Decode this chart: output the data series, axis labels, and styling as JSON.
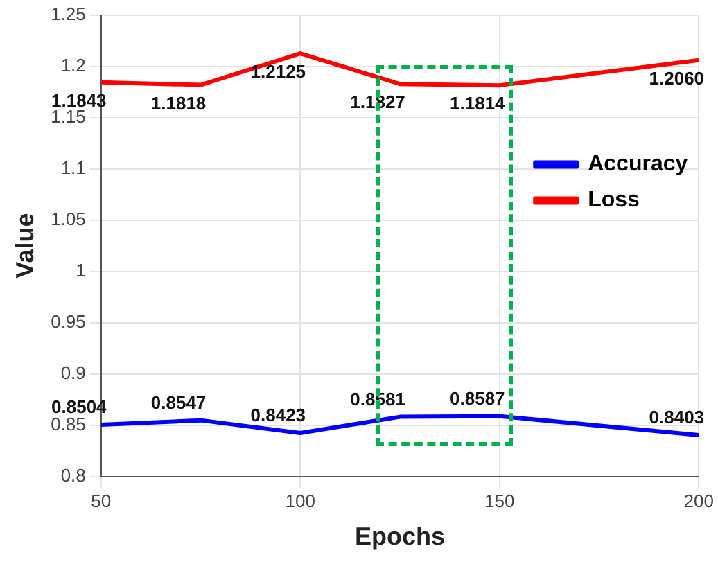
{
  "chart_data": {
    "type": "line",
    "xlabel": "Epochs",
    "ylabel": "Value",
    "x": [
      50,
      75,
      100,
      125,
      150,
      200
    ],
    "series": [
      {
        "name": "Accuracy",
        "color": "#0000ff",
        "values": [
          0.8504,
          0.8547,
          0.8423,
          0.8581,
          0.8587,
          0.8403
        ],
        "value_labels": [
          "0.8504",
          "0.8547",
          "0.8423",
          "0.8581",
          "0.8587",
          "0.8403"
        ]
      },
      {
        "name": "Loss",
        "color": "#ff0000",
        "values": [
          1.1843,
          1.1818,
          1.2125,
          1.1827,
          1.1814,
          1.206
        ],
        "value_labels": [
          "1.1843",
          "1.1818",
          "1.2125",
          "1.1827",
          "1.1814",
          "1.2060"
        ]
      }
    ],
    "xlim": [
      50,
      200
    ],
    "xticks": [
      50,
      100,
      150,
      200
    ],
    "ylim": [
      0.8,
      1.25
    ],
    "yticks": [
      0.8,
      0.85,
      0.9,
      0.95,
      1,
      1.05,
      1.1,
      1.15,
      1.2,
      1.25
    ],
    "grid": true,
    "legend": "right",
    "line_style": "solid",
    "marker": "none"
  }
}
